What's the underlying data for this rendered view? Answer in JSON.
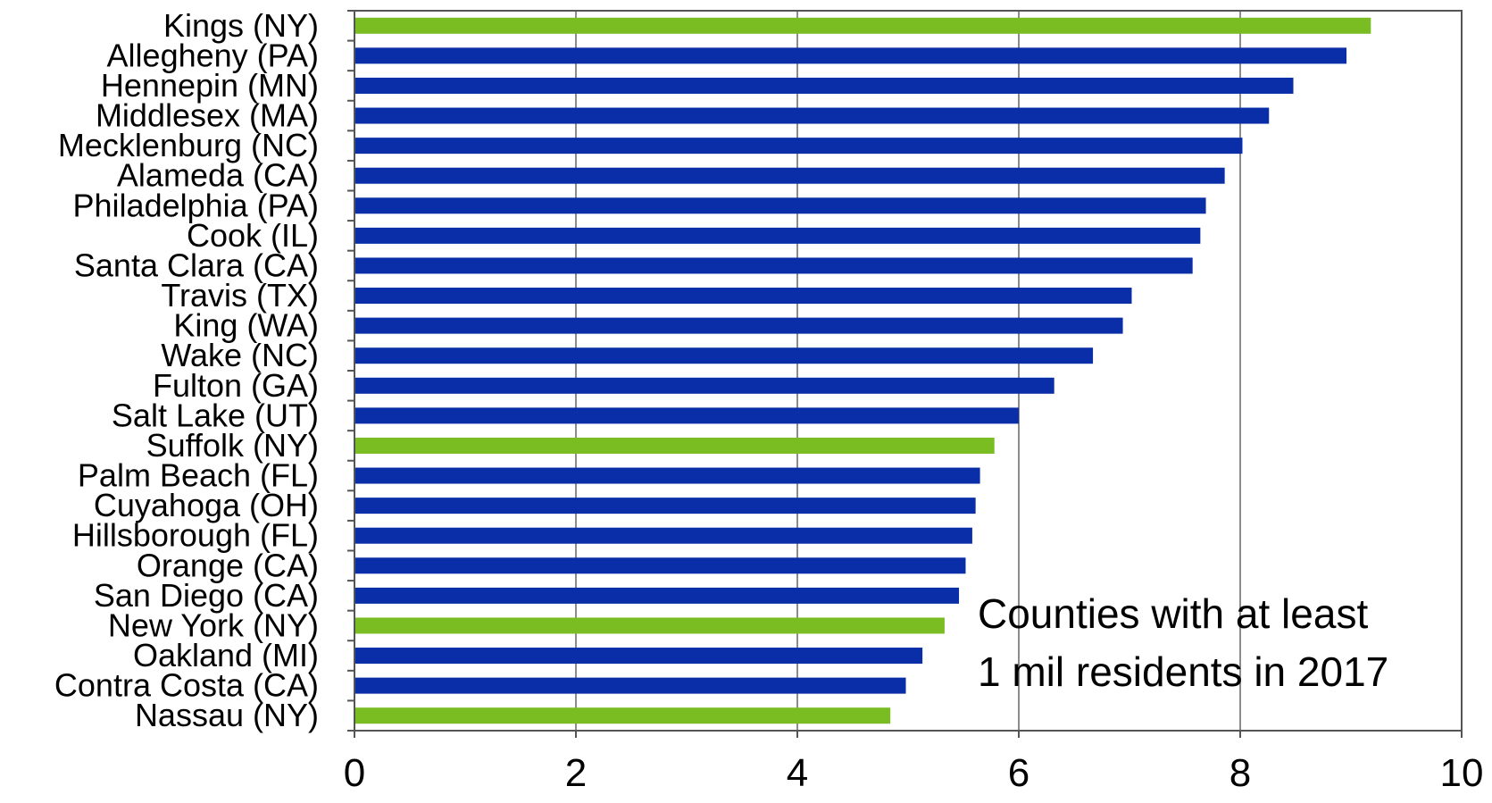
{
  "chart_data": {
    "type": "bar",
    "orientation": "horizontal",
    "categories": [
      "Kings (NY)",
      "Allegheny (PA)",
      "Hennepin (MN)",
      "Middlesex (MA)",
      "Mecklenburg (NC)",
      "Alameda (CA)",
      "Philadelphia (PA)",
      "Cook (IL)",
      "Santa Clara (CA)",
      "Travis (TX)",
      "King (WA)",
      "Wake (NC)",
      "Fulton (GA)",
      "Salt Lake (UT)",
      "Suffolk (NY)",
      "Palm Beach (FL)",
      "Cuyahoga (OH)",
      "Hillsborough (FL)",
      "Orange (CA)",
      "San Diego (CA)",
      "New York (NY)",
      "Oakland (MI)",
      "Contra Costa (CA)",
      "Nassau (NY)"
    ],
    "values": [
      9.18,
      8.96,
      8.48,
      8.26,
      8.02,
      7.86,
      7.69,
      7.64,
      7.57,
      7.02,
      6.94,
      6.67,
      6.32,
      6.0,
      5.78,
      5.65,
      5.61,
      5.58,
      5.52,
      5.46,
      5.33,
      5.13,
      4.98,
      4.84
    ],
    "highlight": [
      true,
      false,
      false,
      false,
      false,
      false,
      false,
      false,
      false,
      false,
      false,
      false,
      false,
      false,
      true,
      false,
      false,
      false,
      false,
      false,
      true,
      false,
      false,
      true
    ],
    "colors": {
      "default": "#0a2ea8",
      "highlight": "#79bd23",
      "grid": "#8c8c8c",
      "axis": "#555555"
    },
    "xlim": [
      0,
      10
    ],
    "xticks": [
      "0",
      "2",
      "4",
      "6",
      "8",
      "10"
    ],
    "grid": true,
    "title": "",
    "xlabel": "",
    "ylabel": "",
    "annotation": [
      "Counties with at least",
      "1 mil residents in 2017"
    ]
  }
}
